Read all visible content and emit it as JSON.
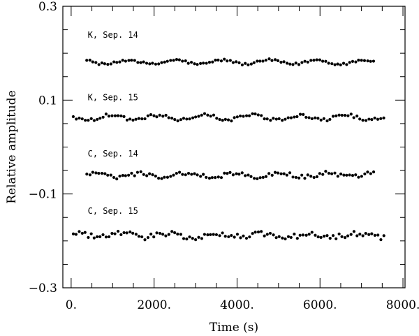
{
  "chart_data": {
    "type": "scatter",
    "title": "",
    "xlabel": "Time (s)",
    "ylabel": "Relative amplitude",
    "xlim": [
      -200,
      8050
    ],
    "ylim": [
      -0.3,
      0.3
    ],
    "grid": false,
    "legend": "none",
    "point_color": "#000000",
    "x_ticks": [
      0,
      2000,
      4000,
      6000,
      8000
    ],
    "x_tick_labels": [
      "0.",
      "2000.",
      "4000.",
      "6000.",
      "8000."
    ],
    "y_ticks": [
      -0.3,
      -0.1,
      0.1,
      0.3
    ],
    "y_tick_labels": [
      "−0.3",
      "−0.1",
      "0.1",
      "0.3"
    ],
    "series": [
      {
        "name": "K, Sep. 14",
        "label_at": {
          "x": 400,
          "y": 0.233
        },
        "sample": {
          "x_start": 380,
          "x_end": 7350,
          "dx": 72,
          "baseline": 0.181,
          "amplitude": 0.0045,
          "noise": 0.0025
        }
      },
      {
        "name": "K, Sep. 15",
        "label_at": {
          "x": 400,
          "y": 0.1
        },
        "sample": {
          "x_start": 50,
          "x_end": 7600,
          "dx": 72,
          "baseline": 0.063,
          "amplitude": 0.005,
          "noise": 0.0035
        }
      },
      {
        "name": "C, Sep. 14",
        "label_at": {
          "x": 400,
          "y": -0.02
        },
        "sample": {
          "x_start": 380,
          "x_end": 7350,
          "dx": 72,
          "baseline": -0.06,
          "amplitude": 0.004,
          "noise": 0.0045
        }
      },
      {
        "name": "C, Sep. 15",
        "label_at": {
          "x": 400,
          "y": -0.142
        },
        "sample": {
          "x_start": 50,
          "x_end": 7600,
          "dx": 72,
          "baseline": -0.188,
          "amplitude": 0.004,
          "noise": 0.006
        }
      }
    ]
  }
}
